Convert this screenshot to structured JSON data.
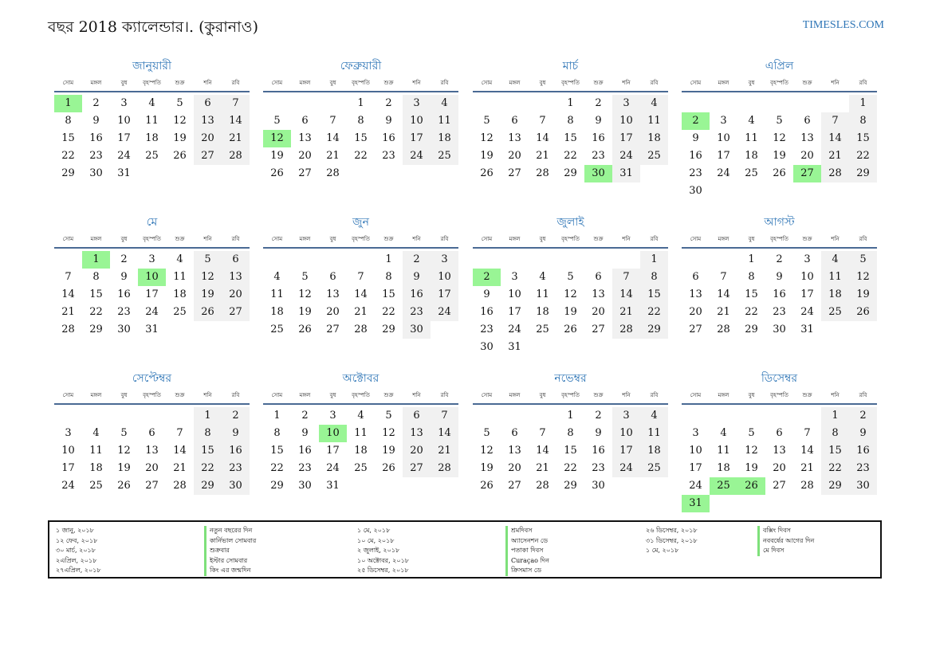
{
  "header": {
    "title": "বছর 2018 ক্যালেন্ডার।. (কুরানাও)",
    "site": "TIMESLES.COM"
  },
  "weekdays": [
    "সোম",
    "মঙ্গল",
    "বুধ",
    "বৃহস্পতি",
    "শুক্র",
    "শনি",
    "রবি"
  ],
  "months": [
    {
      "name": "জানুয়ারী",
      "offset": 0,
      "days": 31,
      "holidays": [
        1
      ]
    },
    {
      "name": "ফেব্রুয়ারী",
      "offset": 3,
      "days": 28,
      "holidays": [
        12
      ]
    },
    {
      "name": "মার্চ",
      "offset": 3,
      "days": 31,
      "holidays": [
        30
      ]
    },
    {
      "name": "এপ্রিল",
      "offset": 6,
      "days": 30,
      "holidays": [
        2,
        27
      ]
    },
    {
      "name": "মে",
      "offset": 1,
      "days": 31,
      "holidays": [
        1,
        10
      ]
    },
    {
      "name": "জুন",
      "offset": 4,
      "days": 30,
      "holidays": []
    },
    {
      "name": "জুলাই",
      "offset": 6,
      "days": 31,
      "holidays": [
        2
      ]
    },
    {
      "name": "আগস্ট",
      "offset": 2,
      "days": 31,
      "holidays": []
    },
    {
      "name": "সেপ্টেম্বর",
      "offset": 5,
      "days": 30,
      "holidays": []
    },
    {
      "name": "অক্টোবর",
      "offset": 0,
      "days": 31,
      "holidays": [
        10
      ]
    },
    {
      "name": "নভেম্বর",
      "offset": 3,
      "days": 30,
      "holidays": []
    },
    {
      "name": "ডিসেম্বর",
      "offset": 5,
      "days": 31,
      "holidays": [
        25,
        26,
        31
      ]
    }
  ],
  "legend": {
    "col1_dates": [
      "১ জানু, ২০১৮",
      "১২ ফেব, ২০১৮",
      "৩০ মার্চ, ২০১৮",
      "২এপ্রিল, ২০১৮",
      "২৭এপ্রিল, ২০১৮"
    ],
    "col1_names": [
      "নতুন বছরের দিন",
      "কার্নিভাল সোমবার",
      "শুক্রবার",
      "ইস্টার সোমবার",
      "কিং এর জন্মদিন"
    ],
    "col2_dates": [
      "১ মে, ২০১৮",
      "১০ মে, ২০১৮",
      "২ জুলাই, ২০১৮",
      "১০ অক্টোবর, ২০১৮",
      "২৫ ডিসেম্বর, ২০১৮"
    ],
    "col2_names": [
      "শ্রমদিবস",
      "অ্যাসেনশন ডে",
      "পতাকা দিবস",
      "Curaçao দিন",
      "ক্রিসমাস ডে"
    ],
    "col3_dates": [
      "২৬ ডিসেম্বর, ২০১৮",
      "৩১ ডিসেম্বর, ২০১৮",
      "১ মে, ২০১৮"
    ],
    "col3_names": [
      "বক্সিং দিবস",
      "নববর্ষের আগের দিন",
      "মে দিবস"
    ]
  }
}
